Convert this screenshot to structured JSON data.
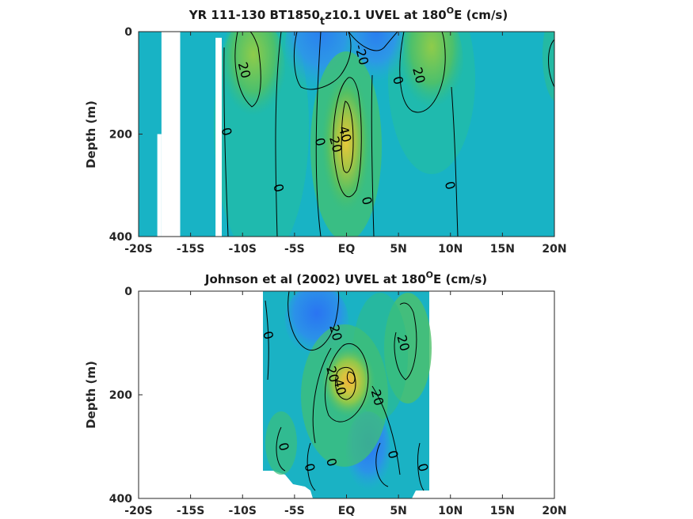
{
  "colors": {
    "background_field": "#18b3c5",
    "contour_line": "#000000",
    "frame": "#262626",
    "title_text": "#1a1a1a"
  },
  "chart_data": [
    {
      "type": "heatmap",
      "subtype": "filled-contour",
      "title_main": "YR 111-130 BT1850",
      "title_sub": "t",
      "title_rest": "z10.1 UVEL at 180",
      "title_sup": "O",
      "title_end": "E (cm/s)",
      "xlabel": "",
      "ylabel": "Depth (m)",
      "xlim": [
        -20,
        20
      ],
      "ylim": [
        0,
        400
      ],
      "y_reversed": true,
      "colorscale": "parula",
      "clim": [
        -40,
        60
      ],
      "xticks": [
        -20,
        -15,
        -10,
        -5,
        0,
        5,
        10,
        15,
        20
      ],
      "xtick_labels": [
        "-20S",
        "-15S",
        "-10S",
        "-5S",
        "EQ",
        "5N",
        "10N",
        "15N",
        "20N"
      ],
      "yticks": [
        0,
        200,
        400
      ],
      "ytick_labels": [
        "0",
        "200",
        "400"
      ],
      "features": [
        {
          "kind": "core",
          "lat": 0,
          "depth": 180,
          "value": 48
        },
        {
          "kind": "westward",
          "lat": -2,
          "depth": 40,
          "value": -30
        },
        {
          "kind": "westward",
          "lat": 2,
          "depth": 30,
          "value": -25
        },
        {
          "kind": "eastward",
          "lat": 8,
          "depth": 50,
          "value": 28
        },
        {
          "kind": "eastward",
          "lat": -10,
          "depth": 40,
          "value": 22
        }
      ],
      "contour_labels": [
        {
          "text": "-20",
          "lat": 1.5,
          "depth": 45
        },
        {
          "text": "20",
          "lat": -9.8,
          "depth": 75
        },
        {
          "text": "0",
          "lat": 5,
          "depth": 95
        },
        {
          "text": "20",
          "lat": 7,
          "depth": 85
        },
        {
          "text": "0",
          "lat": -11.5,
          "depth": 195
        },
        {
          "text": "40",
          "lat": -0.1,
          "depth": 200
        },
        {
          "text": "20",
          "lat": -1,
          "depth": 220
        },
        {
          "text": "0",
          "lat": -2.5,
          "depth": 215
        },
        {
          "text": "0",
          "lat": -6.5,
          "depth": 305
        },
        {
          "text": "0",
          "lat": 2,
          "depth": 330
        },
        {
          "text": "0",
          "lat": 10,
          "depth": 300
        }
      ],
      "missing_regions": [
        {
          "lat_from": -17.8,
          "lat_to": -16.0,
          "depth_from": 0,
          "depth_to": 400
        },
        {
          "lat_from": -18.2,
          "lat_to": -17.8,
          "depth_from": 200,
          "depth_to": 400
        },
        {
          "lat_from": -16.5,
          "lat_to": -16.0,
          "depth_from": 0,
          "depth_to": 12
        },
        {
          "lat_from": -12.6,
          "lat_to": -12.0,
          "depth_from": 12,
          "depth_to": 400
        }
      ]
    },
    {
      "type": "heatmap",
      "subtype": "filled-contour",
      "title_main": "Johnson et al (2002) UVEL at 180",
      "title_sup": "O",
      "title_end": "E (cm/s)",
      "xlabel": "",
      "ylabel": "Depth (m)",
      "xlim": [
        -20,
        20
      ],
      "ylim": [
        0,
        400
      ],
      "y_reversed": true,
      "colorscale": "parula",
      "clim": [
        -40,
        60
      ],
      "data_extent_lat": [
        -8,
        8
      ],
      "xticks": [
        -20,
        -15,
        -10,
        -5,
        0,
        5,
        10,
        15,
        20
      ],
      "xtick_labels": [
        "-20S",
        "-15S",
        "-10S",
        "-5S",
        "EQ",
        "5N",
        "10N",
        "15N",
        "20N"
      ],
      "yticks": [
        0,
        200,
        400
      ],
      "ytick_labels": [
        "0",
        "200",
        "400"
      ],
      "features": [
        {
          "kind": "core",
          "lat": 0.5,
          "depth": 170,
          "value": 60
        },
        {
          "kind": "westward",
          "lat": -2.5,
          "depth": 60,
          "value": -30
        },
        {
          "kind": "westward",
          "lat": 2.5,
          "depth": 310,
          "value": -15
        },
        {
          "kind": "eastward",
          "lat": 5.5,
          "depth": 90,
          "value": 25
        }
      ],
      "contour_labels": [
        {
          "text": "0",
          "lat": -7.5,
          "depth": 85
        },
        {
          "text": "20",
          "lat": -1,
          "depth": 80
        },
        {
          "text": "20",
          "lat": 5.5,
          "depth": 100
        },
        {
          "text": "20",
          "lat": -1.3,
          "depth": 160
        },
        {
          "text": "40",
          "lat": -0.6,
          "depth": 185
        },
        {
          "text": "20",
          "lat": 3,
          "depth": 205
        },
        {
          "text": "0",
          "lat": -6,
          "depth": 300
        },
        {
          "text": "0",
          "lat": -1.4,
          "depth": 330
        },
        {
          "text": "0",
          "lat": -3.5,
          "depth": 340
        },
        {
          "text": "0",
          "lat": 4.5,
          "depth": 315
        },
        {
          "text": "0",
          "lat": 7.4,
          "depth": 340
        }
      ]
    }
  ]
}
